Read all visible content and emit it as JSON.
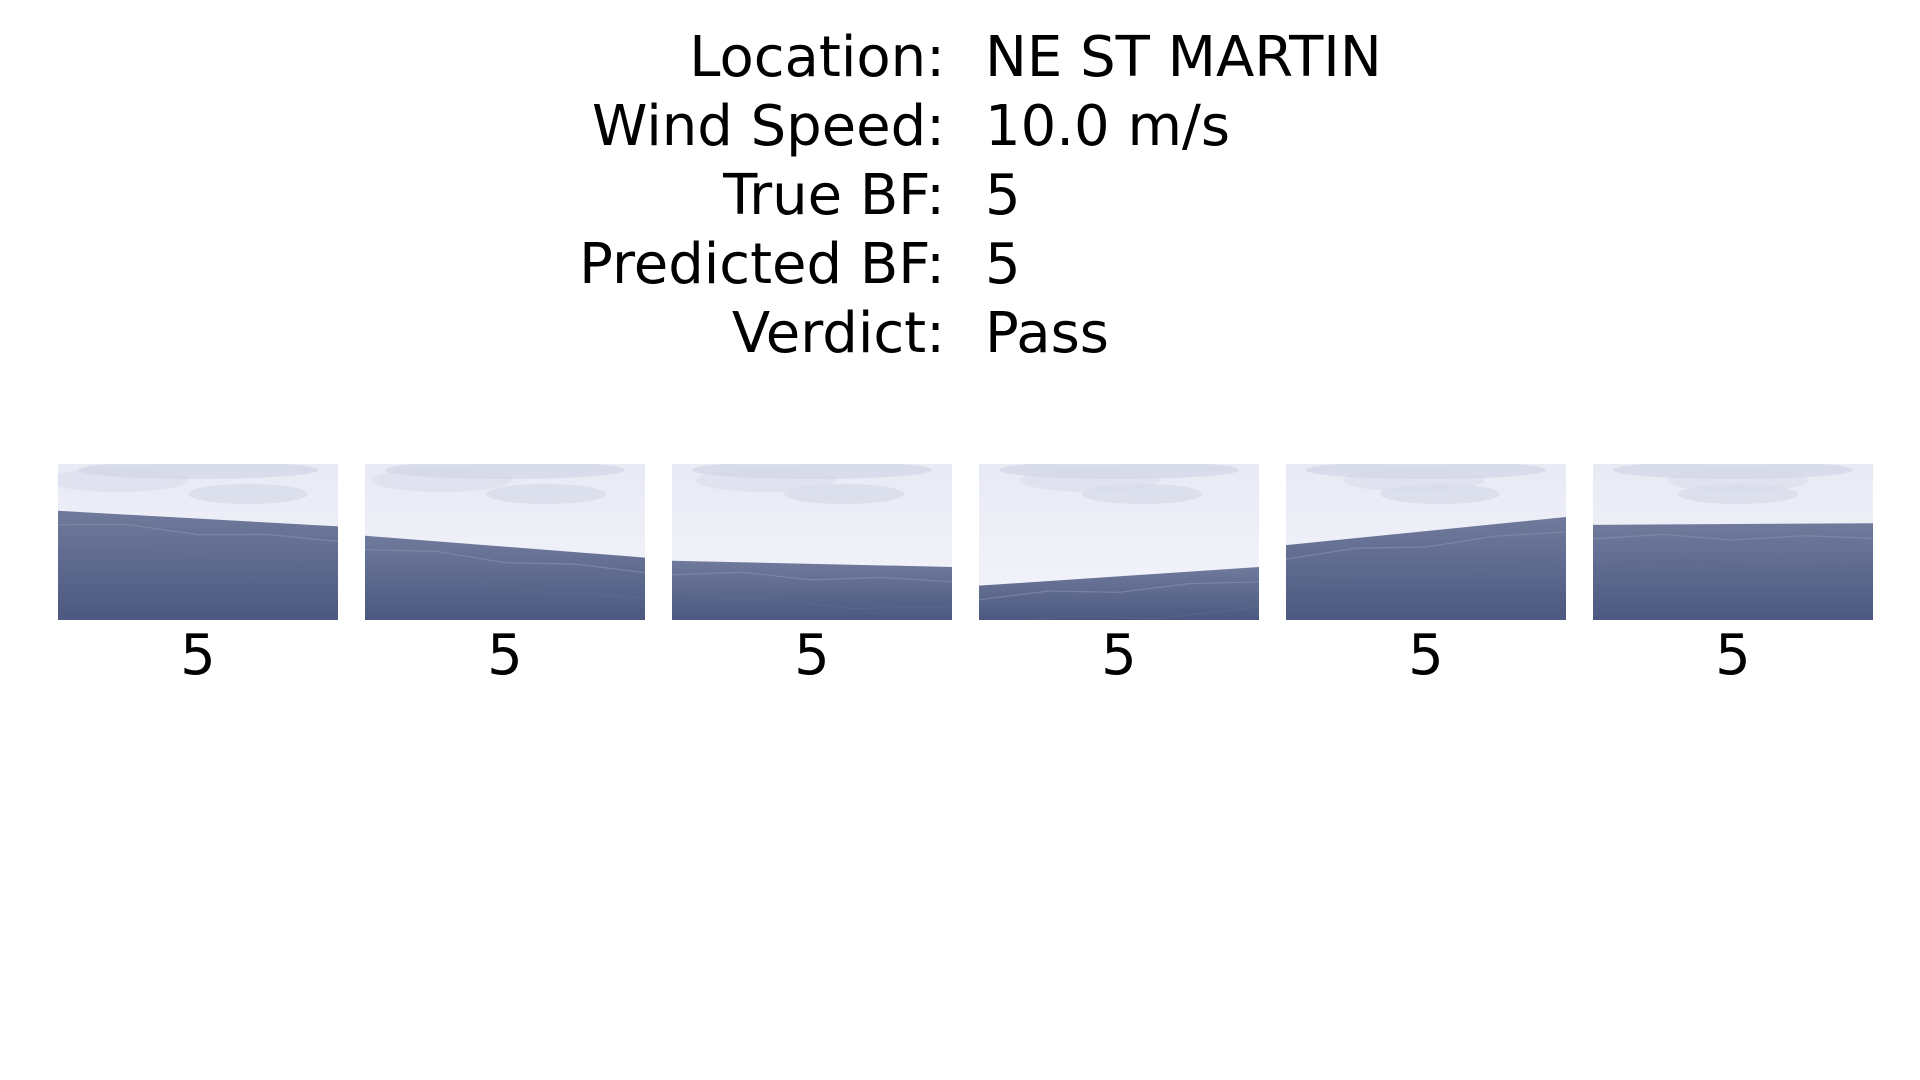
{
  "summary": {
    "rows": [
      {
        "label": "Location:",
        "value": "NE ST MARTIN"
      },
      {
        "label": "Wind Speed:",
        "value": "10.0 m/s"
      },
      {
        "label": "True BF:",
        "value": "5"
      },
      {
        "label": "Predicted BF:",
        "value": "5"
      },
      {
        "label": "Verdict:",
        "value": "Pass"
      }
    ]
  },
  "gallery": {
    "images": [
      {
        "label": "5",
        "horizon_left": 0.3,
        "horizon_right": 0.4
      },
      {
        "label": "5",
        "horizon_left": 0.46,
        "horizon_right": 0.6
      },
      {
        "label": "5",
        "horizon_left": 0.62,
        "horizon_right": 0.66
      },
      {
        "label": "5",
        "horizon_left": 0.78,
        "horizon_right": 0.66
      },
      {
        "label": "5",
        "horizon_left": 0.52,
        "horizon_right": 0.34
      },
      {
        "label": "5",
        "horizon_left": 0.39,
        "horizon_right": 0.38
      }
    ],
    "colors": {
      "sky_top": "#e8eaf4",
      "sky_bottom": "#f4f4fb",
      "sea_top": "#6f7a9c",
      "sea_bottom": "#4c5880"
    }
  }
}
